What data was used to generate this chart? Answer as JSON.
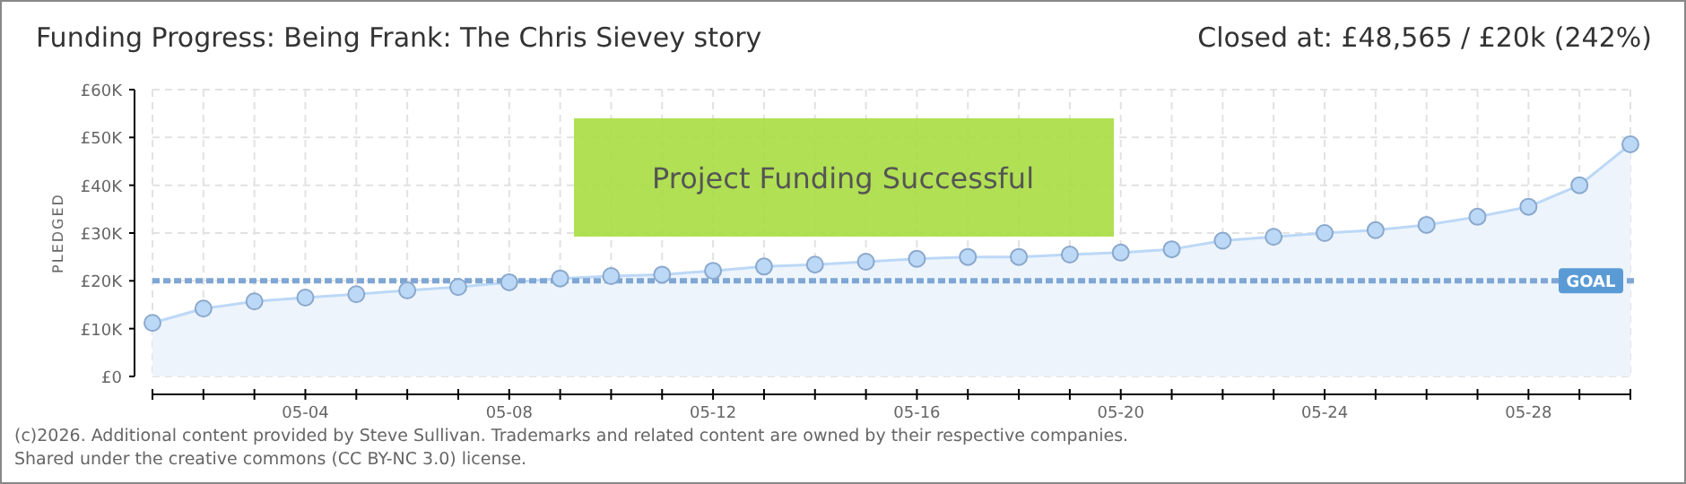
{
  "chart_data": {
    "type": "area",
    "title": "Funding Progress: Being Frank: The Chris Sievey story",
    "subtitle": "Closed at:  £48,565 / £20k (242%)",
    "ylabel": "PLEDGED",
    "categories": [
      null,
      null,
      null,
      "05-04",
      null,
      null,
      null,
      "05-08",
      null,
      null,
      null,
      "05-12",
      null,
      null,
      null,
      "05-16",
      null,
      null,
      null,
      "05-20",
      null,
      null,
      null,
      "05-24",
      null,
      null,
      null,
      "05-28",
      null,
      null
    ],
    "series": [
      {
        "color": "#bcd8f7",
        "values": [
          11200,
          14200,
          15700,
          16500,
          17200,
          18000,
          18700,
          19700,
          20500,
          21000,
          21300,
          22100,
          23000,
          23400,
          24000,
          24600,
          25000,
          25000,
          25500,
          25900,
          26600,
          28400,
          29200,
          30000,
          30600,
          31700,
          33400,
          35500,
          40000,
          48565
        ]
      }
    ],
    "ylim": [
      0,
      60000
    ],
    "yticks": [
      {
        "value": 0,
        "label": "£0"
      },
      {
        "value": 10000,
        "label": "£10K"
      },
      {
        "value": 20000,
        "label": "£20K"
      },
      {
        "value": 30000,
        "label": "£30K"
      },
      {
        "value": 40000,
        "label": "£40K"
      },
      {
        "value": 50000,
        "label": "£50K"
      },
      {
        "value": 60000,
        "label": "£60K"
      }
    ],
    "grid": true,
    "marker": "circle",
    "ref_lines": [
      {
        "axis": "y",
        "value": 20000,
        "label": "GOAL",
        "color": "#7fa6d4",
        "line_style": "dashed"
      }
    ],
    "annotations": [
      "Project Funding Successful",
      "(c)2026. Additional content provided by Steve Sullivan. Trademarks and related content are owned by their respective companies.",
      "Shared under the creative commons (CC BY-NC 3.0) license."
    ]
  }
}
